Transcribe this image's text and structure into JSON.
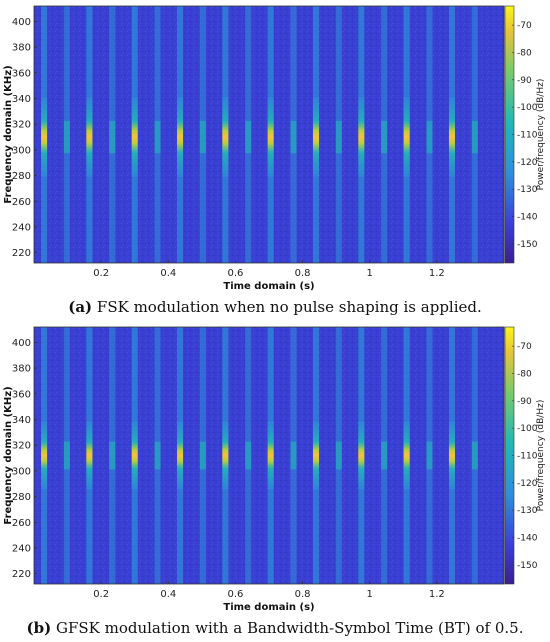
{
  "colors": {
    "background": "#3a3fd3",
    "stripe_low": "#2f8fd8",
    "stripe_mid": "#22b8b5",
    "peak_high": "#f5c23a",
    "peak_mid": "#b9cf3a",
    "peak_low": "#4ec99a"
  },
  "chart_data": [
    {
      "type": "heatmap",
      "panel": "a",
      "caption_label": "(a)",
      "caption_text": " FSK modulation when no pulse shaping is applied.",
      "xlabel": "Time domain (s)",
      "ylabel": "Frequency domain (KHz)",
      "xlim": [
        0,
        1.4
      ],
      "ylim": [
        212,
        412
      ],
      "xticks": [
        0.2,
        0.4,
        0.6,
        0.8,
        1,
        1.2
      ],
      "xtick_labels": [
        "0.2",
        "0.4",
        "0.6",
        "0.8",
        "1",
        "1.2"
      ],
      "yticks": [
        220,
        240,
        260,
        280,
        300,
        320,
        340,
        360,
        380,
        400
      ],
      "ytick_labels": [
        "220",
        "240",
        "260",
        "280",
        "300",
        "320",
        "340",
        "360",
        "380",
        "400"
      ],
      "colorbar": {
        "label": "Power/frequency (dB/Hz)",
        "range": [
          -157,
          -63
        ],
        "ticks": [
          -70,
          -80,
          -90,
          -100,
          -110,
          -120,
          -130,
          -140,
          -150
        ],
        "tick_labels": [
          "-70",
          "-80",
          "-90",
          "-100",
          "-110",
          "-120",
          "-130",
          "-140",
          "-150"
        ]
      },
      "strong_bursts_s": [
        0.03,
        0.165,
        0.3,
        0.435,
        0.57,
        0.705,
        0.84,
        0.975,
        1.11,
        1.245
      ],
      "weak_stripes_s": [
        0.098,
        0.233,
        0.368,
        0.503,
        0.638,
        0.773,
        0.908,
        1.043,
        1.178,
        1.313
      ],
      "burst_center_khz": 310,
      "burst_half_width_khz": 14
    },
    {
      "type": "heatmap",
      "panel": "b",
      "caption_label": "(b)",
      "caption_text": " GFSK modulation with a Bandwidth-Symbol Time (BT) of 0.5.",
      "xlabel": "Time domain (s)",
      "ylabel": "Frequency domain (KHz)",
      "xlim": [
        0,
        1.4
      ],
      "ylim": [
        212,
        412
      ],
      "xticks": [
        0.2,
        0.4,
        0.6,
        0.8,
        1,
        1.2
      ],
      "xtick_labels": [
        "0.2",
        "0.4",
        "0.6",
        "0.8",
        "1",
        "1.2"
      ],
      "yticks": [
        220,
        240,
        260,
        280,
        300,
        320,
        340,
        360,
        380,
        400
      ],
      "ytick_labels": [
        "220",
        "240",
        "260",
        "280",
        "300",
        "320",
        "340",
        "360",
        "380",
        "400"
      ],
      "colorbar": {
        "label": "Power/frequency (dB/Hz)",
        "range": [
          -157,
          -63
        ],
        "ticks": [
          -70,
          -80,
          -90,
          -100,
          -110,
          -120,
          -130,
          -140,
          -150
        ],
        "tick_labels": [
          "-70",
          "-80",
          "-90",
          "-100",
          "-110",
          "-120",
          "-130",
          "-140",
          "-150"
        ]
      },
      "strong_bursts_s": [
        0.03,
        0.165,
        0.3,
        0.435,
        0.57,
        0.705,
        0.84,
        0.975,
        1.11,
        1.245
      ],
      "weak_stripes_s": [
        0.098,
        0.233,
        0.368,
        0.503,
        0.638,
        0.773,
        0.908,
        1.043,
        1.178,
        1.313
      ],
      "burst_center_khz": 312,
      "burst_half_width_khz": 12
    }
  ]
}
